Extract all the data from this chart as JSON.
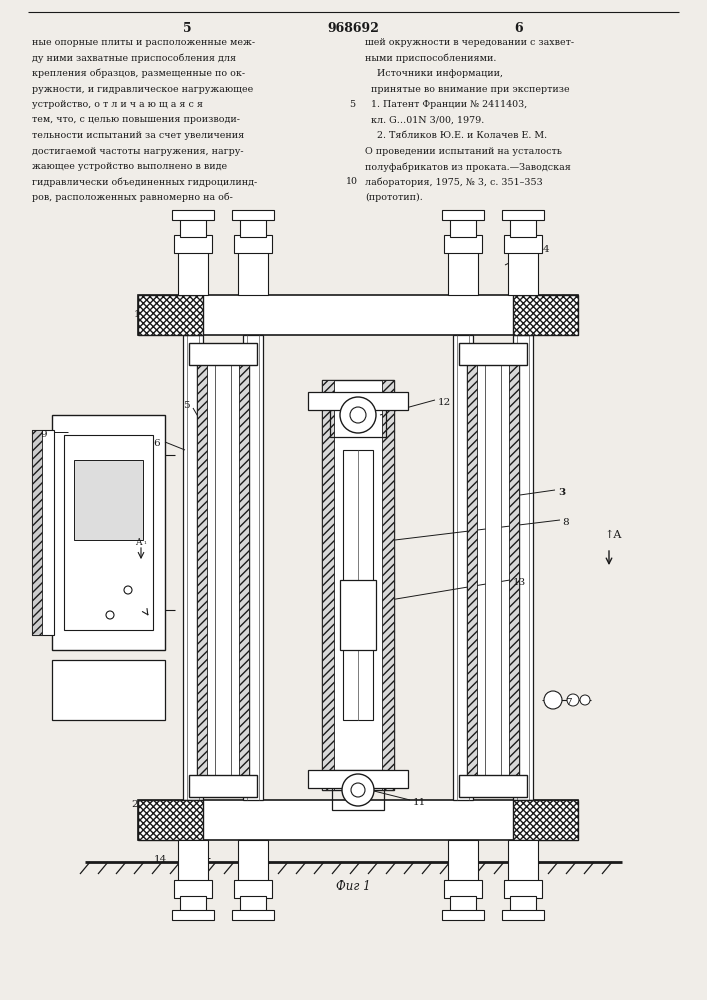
{
  "page_width": 7.07,
  "page_height": 10.0,
  "bg_color": "#f0ede8",
  "line_color": "#1a1a1a",
  "title_number": "968692",
  "page_left": "5",
  "page_right": "6",
  "fig_label": "Фиг 1",
  "text_left_lines": [
    "ные опорные плиты и расположенные меж-",
    "ду ними захватные приспособления для",
    "крепления образцов, размещенные по ок-",
    "ружности, и гидравлическое нагружающее",
    "устройство, о т л и ч а ю щ а я с я",
    "тем, что, с целью повышения производи-",
    "тельности испытаний за счет увеличения",
    "достигаемой частоты нагружения, нагру-",
    "жающее устройство выполнено в виде",
    "гидравлически объединенных гидроцилинд-",
    "ров, расположенных равномерно на об-"
  ],
  "text_right_lines": [
    "шей окружности в чередовании с захвет-",
    "ными приспособлениями.",
    "    Источники информации,",
    "  принятые во внимание при экспертизе",
    "  1. Патент Франции № 2411403,",
    "  кл. G…01N 3/00, 1979.",
    "    2. Тябликов Ю.Е. и Колачев Е. М.",
    "О проведении испытаний на усталость",
    "полуфабрикатов из проката.—Заводская",
    "лаборатория, 1975, № 3, с. 351–353",
    "(прототип)."
  ]
}
